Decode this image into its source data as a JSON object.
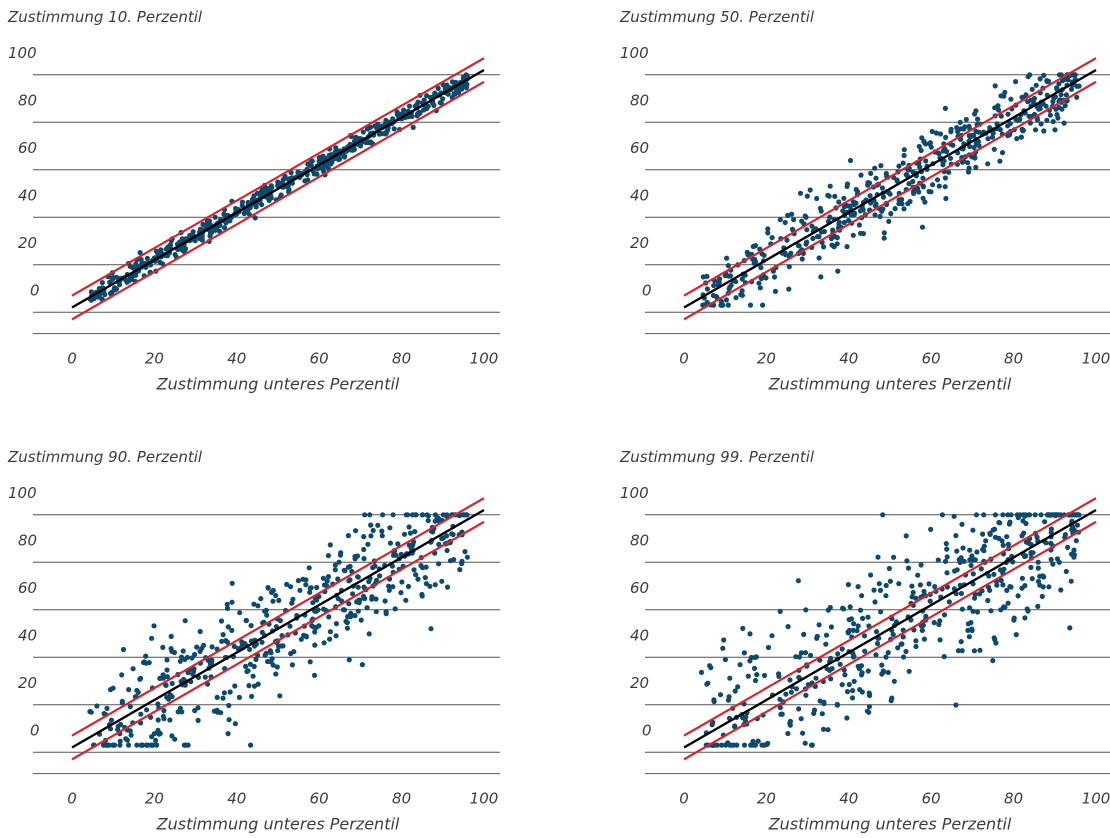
{
  "colors": {
    "points": "#0d4a6e",
    "diagonal": "#000000",
    "band": "#d8262d",
    "grid": "#555555",
    "text": "#3d3d3d"
  },
  "chart_data": [
    {
      "type": "scatter",
      "title": "Zustimmung 10. Perzentil",
      "xlabel": "Zustimmung unteres Perzentil",
      "xlim": [
        0,
        100
      ],
      "ylim": [
        0,
        100
      ],
      "xticks": [
        0,
        20,
        40,
        60,
        80,
        100
      ],
      "yticks": [
        0,
        20,
        40,
        60,
        80,
        100
      ],
      "grid": "horizontal",
      "reference_line": {
        "slope": 1,
        "intercept": 0
      },
      "band_lines": [
        {
          "slope": 1,
          "intercept": 5
        },
        {
          "slope": 1,
          "intercept": -5
        }
      ],
      "spread": 2
    },
    {
      "type": "scatter",
      "title": "Zustimmung 50. Perzentil",
      "xlabel": "Zustimmung unteres Perzentil",
      "xlim": [
        0,
        100
      ],
      "ylim": [
        0,
        100
      ],
      "xticks": [
        0,
        20,
        40,
        60,
        80,
        100
      ],
      "yticks": [
        0,
        20,
        40,
        60,
        80,
        100
      ],
      "grid": "horizontal",
      "reference_line": {
        "slope": 1,
        "intercept": 0
      },
      "band_lines": [
        {
          "slope": 1,
          "intercept": 5
        },
        {
          "slope": 1,
          "intercept": -5
        }
      ],
      "spread": 8
    },
    {
      "type": "scatter",
      "title": "Zustimmung 90. Perzentil",
      "xlabel": "Zustimmung unteres Perzentil",
      "xlim": [
        0,
        100
      ],
      "ylim": [
        0,
        100
      ],
      "xticks": [
        0,
        20,
        40,
        60,
        80,
        100
      ],
      "yticks": [
        0,
        20,
        40,
        60,
        80,
        100
      ],
      "grid": "horizontal",
      "reference_line": {
        "slope": 1,
        "intercept": 0
      },
      "band_lines": [
        {
          "slope": 1,
          "intercept": 5
        },
        {
          "slope": 1,
          "intercept": -5
        }
      ],
      "spread": 13
    },
    {
      "type": "scatter",
      "title": "Zustimmung 99. Perzentil",
      "xlabel": "Zustimmung unteres Perzentil",
      "xlim": [
        0,
        100
      ],
      "ylim": [
        0,
        100
      ],
      "xticks": [
        0,
        20,
        40,
        60,
        80,
        100
      ],
      "yticks": [
        0,
        20,
        40,
        60,
        80,
        100
      ],
      "grid": "horizontal",
      "reference_line": {
        "slope": 1,
        "intercept": 0
      },
      "band_lines": [
        {
          "slope": 1,
          "intercept": 5
        },
        {
          "slope": 1,
          "intercept": -5
        }
      ],
      "spread": 16
    }
  ]
}
